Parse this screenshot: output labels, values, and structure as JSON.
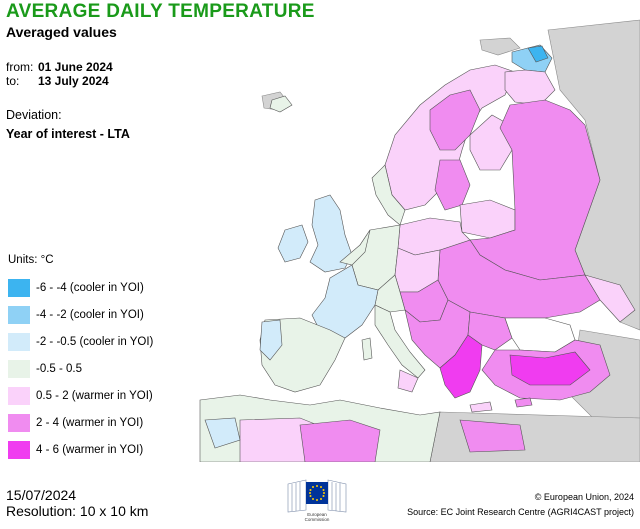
{
  "title": "AVERAGE DAILY TEMPERATURE",
  "subtitle": "Averaged values",
  "period": {
    "from_label": "from:",
    "from_value": "01 June 2024",
    "to_label": "to:",
    "to_value": "13 July 2024"
  },
  "deviation": {
    "label": "Deviation:",
    "value": "Year of interest - LTA"
  },
  "legend": {
    "units": "Units: °C",
    "items": [
      {
        "label": "-6 - -4 (cooler in YOI)",
        "color": "#3cb4f0"
      },
      {
        "label": "-4 - -2 (cooler in YOI)",
        "color": "#8fd1f5"
      },
      {
        "label": "-2 - -0.5 (cooler in YOI)",
        "color": "#d2ebfa"
      },
      {
        "label": "-0.5 - 0.5",
        "color": "#e8f3e8"
      },
      {
        "label": "0.5 - 2 (warmer in YOI)",
        "color": "#fad2fa"
      },
      {
        "label": "2 - 4 (warmer in YOI)",
        "color": "#f08cf0"
      },
      {
        "label": "4 - 6 (warmer in YOI)",
        "color": "#f03cf0"
      }
    ]
  },
  "footer": {
    "date": "15/07/2024",
    "resolution": "Resolution: 10 x 10 km",
    "copyright": "© European Union, 2024",
    "source": "Source: EC Joint Research Centre (AGRI4CAST project)",
    "logo_text_1": "European",
    "logo_text_2": "Commission"
  },
  "colors": {
    "sea": "#ffffff",
    "non_eu_land": "#d3d3d3",
    "country_border": "#555555",
    "title": "#1a9a1a",
    "eu_blue": "#003399",
    "eu_gold": "#ffcc00"
  }
}
